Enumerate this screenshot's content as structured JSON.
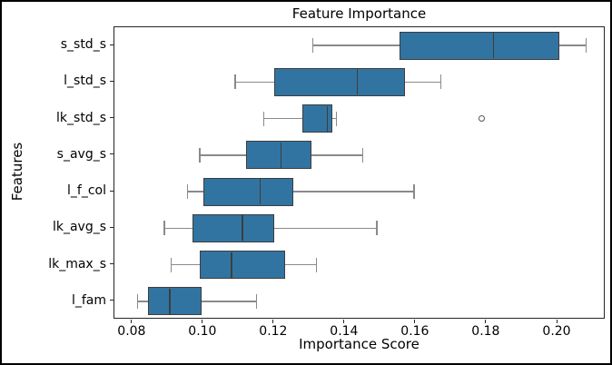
{
  "figure": {
    "title": "Feature Importance",
    "xlabel": "Importance Score",
    "ylabel": "Features"
  },
  "chart_data": {
    "type": "boxplot",
    "orientation": "horizontal",
    "title": "Feature Importance",
    "xlabel": "Importance Score",
    "ylabel": "Features",
    "xlim": [
      0.0749,
      0.2136
    ],
    "xticks": [
      0.08,
      0.1,
      0.12,
      0.14,
      0.16,
      0.18,
      0.2
    ],
    "xtick_labels": [
      "0.08",
      "0.10",
      "0.12",
      "0.14",
      "0.16",
      "0.18",
      "0.20"
    ],
    "categories": [
      "s_std_s",
      "l_std_s",
      "lk_std_s",
      "s_avg_s",
      "l_f_col",
      "lk_avg_s",
      "lk_max_s",
      "l_fam"
    ],
    "grid": false,
    "legend": null,
    "boxes": [
      {
        "label": "s_std_s",
        "whislo": 0.131,
        "q1": 0.1555,
        "med": 0.182,
        "q3": 0.2005,
        "whishi": 0.208,
        "outliers": []
      },
      {
        "label": "l_std_s",
        "whislo": 0.109,
        "q1": 0.12,
        "med": 0.1435,
        "q3": 0.157,
        "whishi": 0.167,
        "outliers": []
      },
      {
        "label": "lk_std_s",
        "whislo": 0.117,
        "q1": 0.128,
        "med": 0.135,
        "q3": 0.1365,
        "whishi": 0.1375,
        "outliers": [
          0.1785
        ]
      },
      {
        "label": "s_avg_s",
        "whislo": 0.099,
        "q1": 0.112,
        "med": 0.122,
        "q3": 0.1305,
        "whishi": 0.145,
        "outliers": []
      },
      {
        "label": "l_f_col",
        "whislo": 0.0955,
        "q1": 0.1,
        "med": 0.116,
        "q3": 0.1255,
        "whishi": 0.1595,
        "outliers": []
      },
      {
        "label": "lk_avg_s",
        "whislo": 0.089,
        "q1": 0.097,
        "med": 0.111,
        "q3": 0.12,
        "whishi": 0.149,
        "outliers": []
      },
      {
        "label": "lk_max_s",
        "whislo": 0.091,
        "q1": 0.099,
        "med": 0.108,
        "q3": 0.123,
        "whishi": 0.132,
        "outliers": []
      },
      {
        "label": "l_fam",
        "whislo": 0.0815,
        "q1": 0.0845,
        "med": 0.0905,
        "q3": 0.0995,
        "whishi": 0.115,
        "outliers": []
      }
    ],
    "colors": {
      "box_fill": "#3274a1",
      "box_edge": "#3d3d3d",
      "median": "#3d3d3d",
      "whisker": "#8a8a8a",
      "outlier_edge": "#555555",
      "spine": "#262626",
      "text": "#000000",
      "background": "#ffffff",
      "figure_border": "#000000"
    }
  }
}
